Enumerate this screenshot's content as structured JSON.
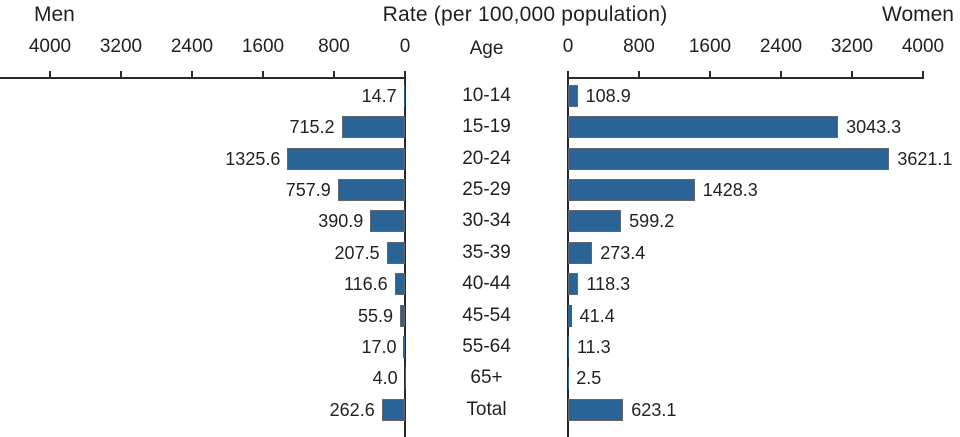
{
  "chart_data": {
    "type": "bar",
    "subtype": "population-pyramid",
    "title": "Rate (per 100,000 population)",
    "left_series_title": "Men",
    "right_series_title": "Women",
    "center_column_header": "Age",
    "axis_range": [
      0,
      4000
    ],
    "tick_step": 800,
    "grid": false,
    "left_axis_tick_labels": [
      "4000",
      "3200",
      "2400",
      "1600",
      "800",
      "0"
    ],
    "right_axis_tick_labels": [
      "0",
      "800",
      "1600",
      "2400",
      "3200",
      "4000"
    ],
    "categories": [
      "10-14",
      "15-19",
      "20-24",
      "25-29",
      "30-34",
      "35-39",
      "40-44",
      "45-54",
      "55-64",
      "65+",
      "Total"
    ],
    "series": [
      {
        "name": "Men",
        "values": [
          14.7,
          715.2,
          1325.6,
          757.9,
          390.9,
          207.5,
          116.6,
          55.9,
          17.0,
          4.0,
          262.6
        ],
        "labels": [
          "14.7",
          "715.2",
          "1325.6",
          "757.9",
          "390.9",
          "207.5",
          "116.6",
          "55.9",
          "17.0",
          "4.0",
          "262.6"
        ]
      },
      {
        "name": "Women",
        "values": [
          108.9,
          3043.3,
          3621.1,
          1428.3,
          599.2,
          273.4,
          118.3,
          41.4,
          11.3,
          2.5,
          623.1
        ],
        "labels": [
          "108.9",
          "3043.3",
          "3621.1",
          "1428.3",
          "599.2",
          "273.4",
          "118.3",
          "41.4",
          "11.3",
          "2.5",
          "623.1"
        ]
      }
    ],
    "colors": {
      "bar_fill": "#2A6496",
      "bar_border": "#63656A",
      "axis_line": "#2B2A29",
      "text": "#231F20",
      "background": "#FFFFFF"
    }
  }
}
